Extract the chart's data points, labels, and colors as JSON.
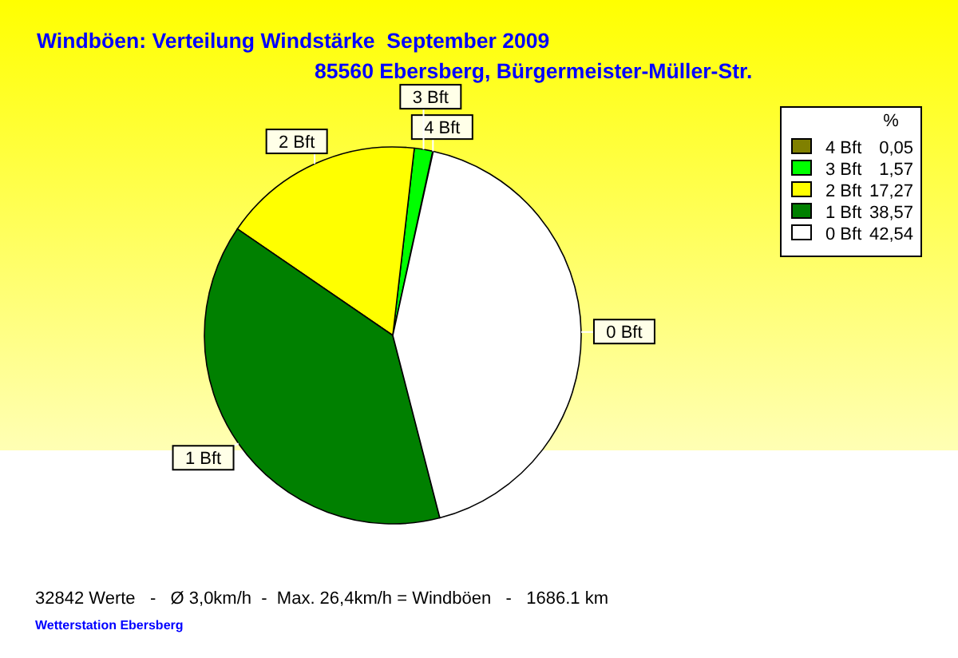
{
  "chart_data": {
    "type": "pie",
    "title": "Windböen: Verteilung Windstärke  September 2009",
    "subtitle": "85560 Ebersberg, Bürgermeister-Müller-Str.",
    "categories": [
      "4 Bft",
      "3 Bft",
      "2 Bft",
      "1 Bft",
      "0 Bft"
    ],
    "values": [
      0.05,
      1.57,
      17.27,
      38.57,
      42.54
    ],
    "colors": [
      "#808000",
      "#00ff00",
      "#ffff00",
      "#008000",
      "#ffffff"
    ],
    "value_labels": [
      "0,05",
      "1,57",
      "17,27",
      "38,57",
      "42,54"
    ],
    "legend_title": "%",
    "legend": "top right",
    "annotations": [
      "32842 Werte   -   Ø 3,0km/h  -  Max. 26,4km/h = Windböen   -   1686.1 km",
      "Wetterstation Ebersberg"
    ]
  }
}
